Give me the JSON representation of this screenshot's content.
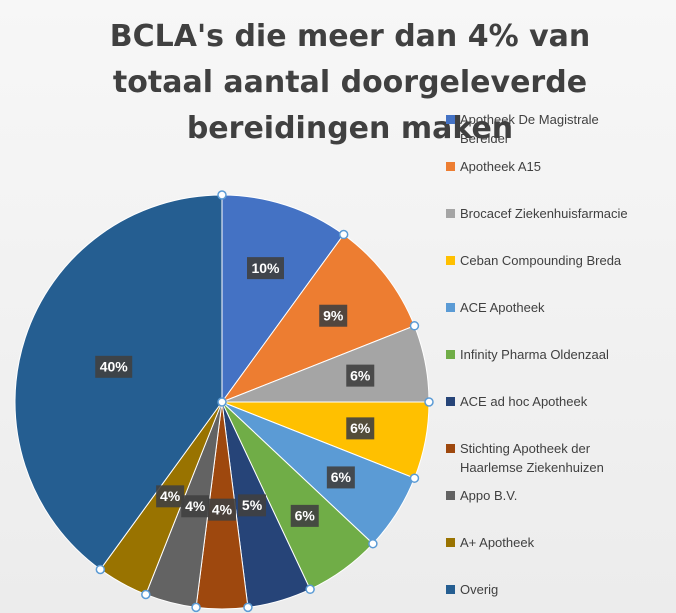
{
  "chart_data": {
    "type": "pie",
    "title": "BCLA's die meer dan 4% van totaal aantal doorgeleverde bereidingen maken",
    "categories": [
      "Apotheek De Magistrale Bereider",
      "Apotheek A15",
      "Brocacef Ziekenhuisfarmacie",
      "Ceban Compounding Breda",
      "ACE Apotheek",
      "Infinity Pharma Oldenzaal",
      "ACE ad hoc Apotheek",
      "Stichting Apotheek der Haarlemse Ziekenhuizen",
      "Appo B.V.",
      "A+ Apotheek",
      "Overig"
    ],
    "values": [
      10,
      9,
      6,
      6,
      6,
      6,
      5,
      4,
      4,
      4,
      40
    ],
    "value_labels": [
      "10%",
      "9%",
      "6%",
      "6%",
      "6%",
      "6%",
      "5%",
      "4%",
      "4%",
      "4%",
      "40%"
    ],
    "colors": [
      "#4472c4",
      "#ed7d31",
      "#a5a5a5",
      "#ffc000",
      "#5b9bd5",
      "#70ad47",
      "#264478",
      "#9e480e",
      "#636363",
      "#997300",
      "#255e91"
    ],
    "legend": "right"
  }
}
